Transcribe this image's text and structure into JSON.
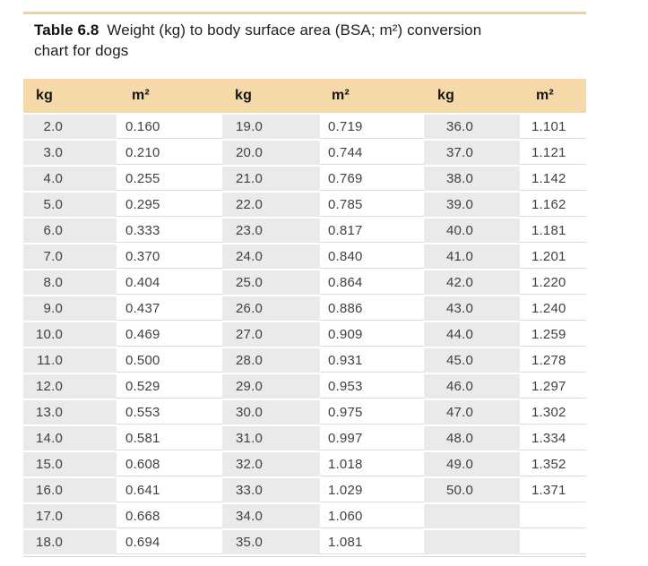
{
  "title": {
    "label": "Table 6.8",
    "line1": "Weight (kg) to body surface area (BSA; m²) conversion",
    "line2": "chart for dogs"
  },
  "table": {
    "headers": [
      "kg",
      "m²",
      "kg",
      "m²",
      "kg",
      "m²"
    ],
    "rows": [
      [
        "2.0",
        "0.160",
        "19.0",
        "0.719",
        "36.0",
        "1.101"
      ],
      [
        "3.0",
        "0.210",
        "20.0",
        "0.744",
        "37.0",
        "1.121"
      ],
      [
        "4.0",
        "0.255",
        "21.0",
        "0.769",
        "38.0",
        "1.142"
      ],
      [
        "5.0",
        "0.295",
        "22.0",
        "0.785",
        "39.0",
        "1.162"
      ],
      [
        "6.0",
        "0.333",
        "23.0",
        "0.817",
        "40.0",
        "1.181"
      ],
      [
        "7.0",
        "0.370",
        "24.0",
        "0.840",
        "41.0",
        "1.201"
      ],
      [
        "8.0",
        "0.404",
        "25.0",
        "0.864",
        "42.0",
        "1.220"
      ],
      [
        "9.0",
        "0.437",
        "26.0",
        "0.886",
        "43.0",
        "1.240"
      ],
      [
        "10.0",
        "0.469",
        "27.0",
        "0.909",
        "44.0",
        "1.259"
      ],
      [
        "11.0",
        "0.500",
        "28.0",
        "0.931",
        "45.0",
        "1.278"
      ],
      [
        "12.0",
        "0.529",
        "29.0",
        "0.953",
        "46.0",
        "1.297"
      ],
      [
        "13.0",
        "0.553",
        "30.0",
        "0.975",
        "47.0",
        "1.302"
      ],
      [
        "14.0",
        "0.581",
        "31.0",
        "0.997",
        "48.0",
        "1.334"
      ],
      [
        "15.0",
        "0.608",
        "32.0",
        "1.018",
        "49.0",
        "1.352"
      ],
      [
        "16.0",
        "0.641",
        "33.0",
        "1.029",
        "50.0",
        "1.371"
      ],
      [
        "17.0",
        "0.668",
        "34.0",
        "1.060",
        "",
        ""
      ],
      [
        "18.0",
        "0.694",
        "35.0",
        "1.081",
        "",
        ""
      ]
    ]
  },
  "colors": {
    "header_tan": "#f5d9a9",
    "top_rule_tan": "#efd2a2",
    "kg_column_gray": "#eaeaea",
    "row_hairline": "#dcdcdc",
    "text": "#414141"
  }
}
